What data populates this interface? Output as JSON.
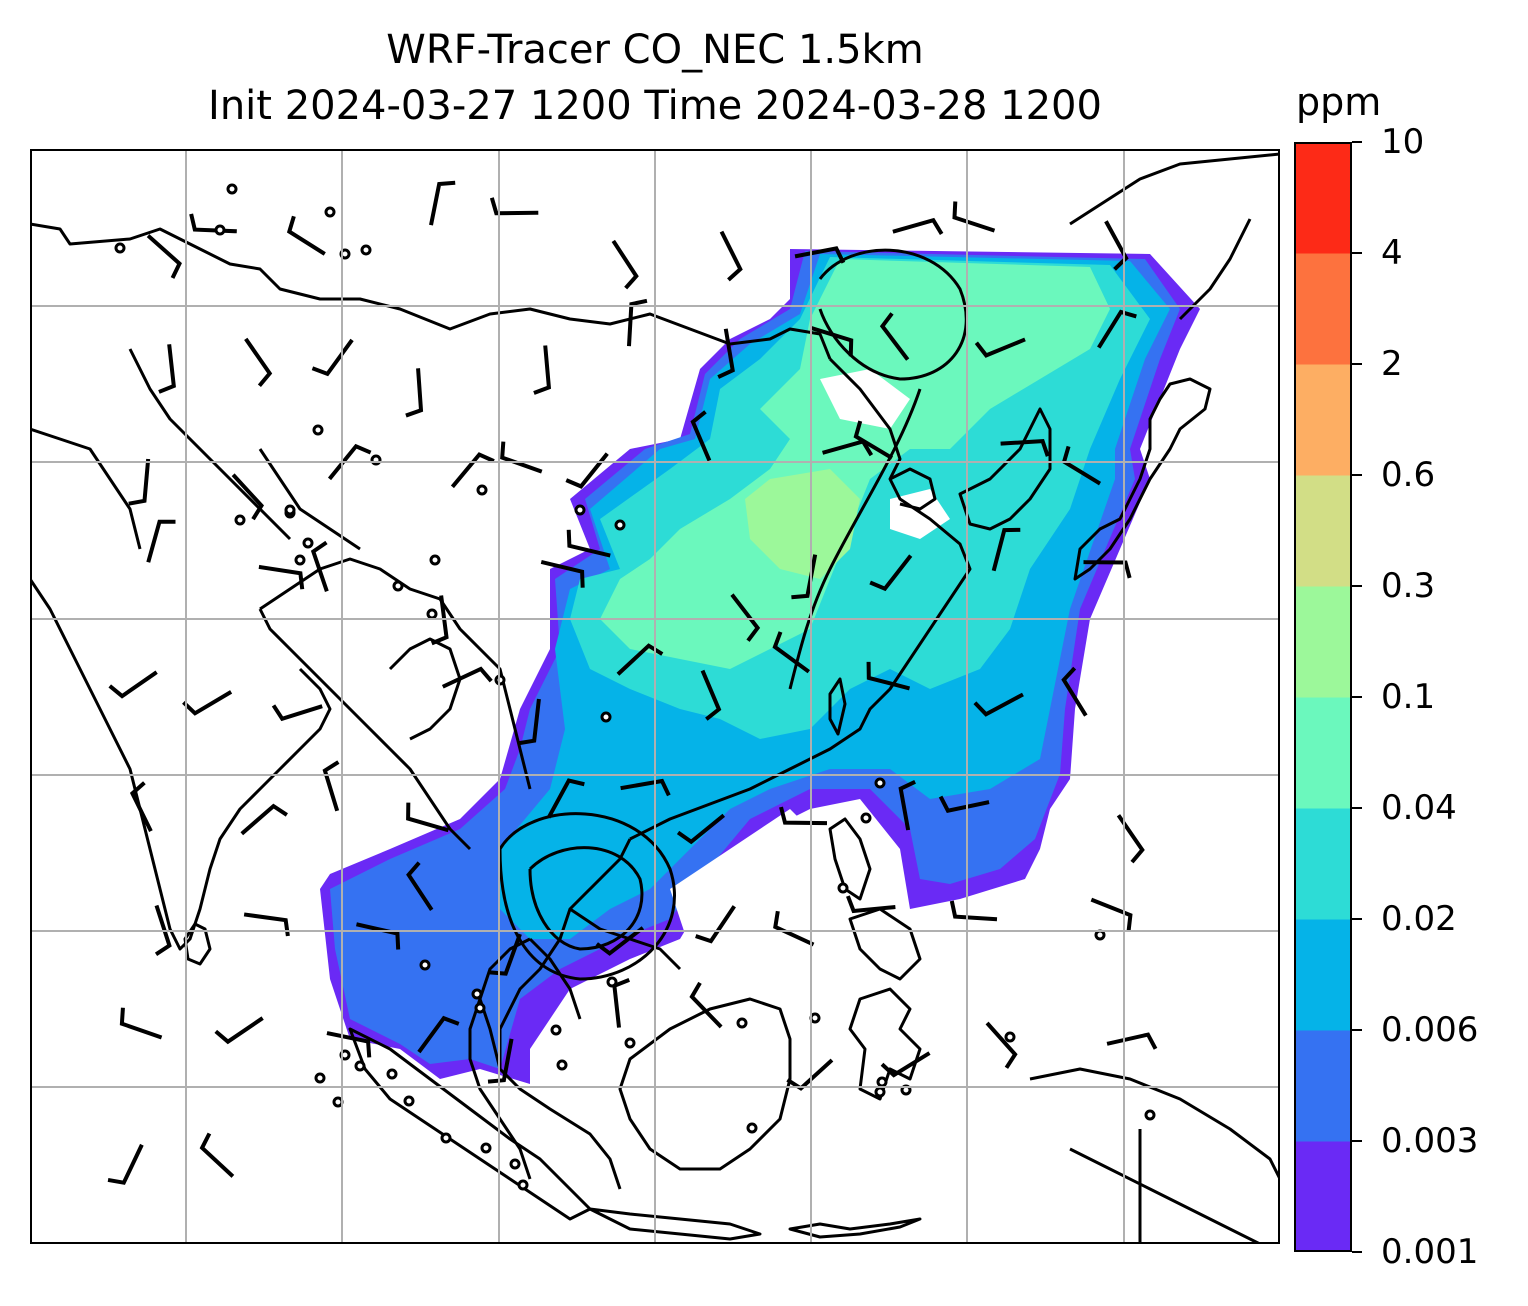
{
  "title": {
    "line1": "WRF-Tracer CO_NEC 1.5km",
    "line2": "Init 2024-03-27 1200 Time 2024-03-28 1200"
  },
  "colorbar": {
    "unit": "ppm",
    "levels": [
      "0.001",
      "0.003",
      "0.006",
      "0.02",
      "0.04",
      "0.1",
      "0.3",
      "0.6",
      "2",
      "4",
      "10"
    ],
    "colors": [
      "#6a2af5",
      "#3572f2",
      "#05b3e8",
      "#2ddcd6",
      "#6bf8bd",
      "#9cf89a",
      "#d2de86",
      "#fdae63",
      "#fd723e",
      "#fd2a17"
    ]
  },
  "map": {
    "gridlines": true,
    "coastline_color": "#000000",
    "wind_barb_color": "#000000"
  }
}
